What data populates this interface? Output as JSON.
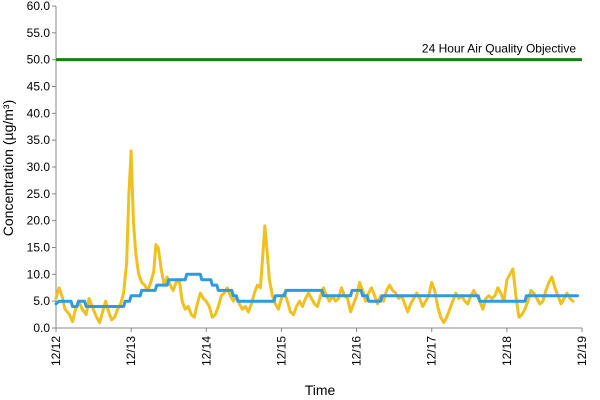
{
  "chart_data": {
    "type": "line",
    "title": "",
    "xlabel": "Time",
    "ylabel": "Concentration (µg/m³)",
    "ylim": [
      0,
      60
    ],
    "y_ticks": [
      "0.0",
      "5.0",
      "10.0",
      "15.0",
      "20.0",
      "25.0",
      "30.0",
      "35.0",
      "40.0",
      "45.0",
      "50.0",
      "55.0",
      "60.0"
    ],
    "x_tick_labels": [
      "12/12",
      "12/13",
      "12/14",
      "12/15",
      "12/16",
      "12/17",
      "12/18",
      "12/19"
    ],
    "x_range_days": [
      0,
      7
    ],
    "grid": false,
    "legend": "none",
    "objective": {
      "label": "24 Hour Air Quality Objective",
      "value": 50,
      "color": "#1e7a1e"
    },
    "series": [
      {
        "color": "#f0c020",
        "points": [
          [
            0.0,
            5.5
          ],
          [
            0.04,
            7.5
          ],
          [
            0.08,
            6.0
          ],
          [
            0.12,
            3.5
          ],
          [
            0.18,
            2.5
          ],
          [
            0.22,
            1.2
          ],
          [
            0.26,
            3.5
          ],
          [
            0.3,
            5.0
          ],
          [
            0.35,
            3.5
          ],
          [
            0.4,
            2.5
          ],
          [
            0.44,
            5.5
          ],
          [
            0.48,
            4.0
          ],
          [
            0.54,
            2.0
          ],
          [
            0.58,
            1.0
          ],
          [
            0.62,
            3.0
          ],
          [
            0.66,
            5.0
          ],
          [
            0.7,
            3.0
          ],
          [
            0.74,
            1.5
          ],
          [
            0.78,
            2.0
          ],
          [
            0.82,
            3.5
          ],
          [
            0.86,
            4.5
          ],
          [
            0.9,
            6.5
          ],
          [
            0.94,
            12.0
          ],
          [
            0.97,
            25.0
          ],
          [
            1.0,
            33.0
          ],
          [
            1.03,
            20.0
          ],
          [
            1.06,
            14.0
          ],
          [
            1.1,
            10.0
          ],
          [
            1.14,
            8.5
          ],
          [
            1.18,
            8.0
          ],
          [
            1.22,
            7.0
          ],
          [
            1.26,
            8.5
          ],
          [
            1.3,
            10.5
          ],
          [
            1.33,
            15.5
          ],
          [
            1.36,
            15.0
          ],
          [
            1.4,
            11.0
          ],
          [
            1.44,
            8.0
          ],
          [
            1.48,
            9.5
          ],
          [
            1.52,
            8.0
          ],
          [
            1.56,
            7.0
          ],
          [
            1.6,
            8.5
          ],
          [
            1.64,
            9.0
          ],
          [
            1.68,
            5.0
          ],
          [
            1.72,
            3.5
          ],
          [
            1.76,
            4.0
          ],
          [
            1.8,
            2.5
          ],
          [
            1.84,
            2.0
          ],
          [
            1.88,
            4.5
          ],
          [
            1.92,
            6.5
          ],
          [
            1.96,
            5.5
          ],
          [
            2.0,
            5.0
          ],
          [
            2.04,
            4.0
          ],
          [
            2.08,
            2.0
          ],
          [
            2.12,
            2.5
          ],
          [
            2.16,
            4.0
          ],
          [
            2.2,
            6.0
          ],
          [
            2.24,
            6.5
          ],
          [
            2.28,
            7.5
          ],
          [
            2.32,
            6.0
          ],
          [
            2.36,
            5.0
          ],
          [
            2.4,
            6.0
          ],
          [
            2.44,
            4.5
          ],
          [
            2.48,
            3.5
          ],
          [
            2.52,
            4.0
          ],
          [
            2.56,
            3.0
          ],
          [
            2.6,
            4.5
          ],
          [
            2.64,
            6.5
          ],
          [
            2.68,
            8.0
          ],
          [
            2.72,
            7.5
          ],
          [
            2.75,
            13.0
          ],
          [
            2.78,
            19.0
          ],
          [
            2.81,
            14.0
          ],
          [
            2.84,
            9.0
          ],
          [
            2.88,
            6.0
          ],
          [
            2.92,
            4.5
          ],
          [
            2.96,
            3.5
          ],
          [
            3.0,
            5.5
          ],
          [
            3.04,
            6.5
          ],
          [
            3.08,
            5.0
          ],
          [
            3.12,
            3.0
          ],
          [
            3.16,
            2.5
          ],
          [
            3.2,
            4.0
          ],
          [
            3.24,
            5.0
          ],
          [
            3.28,
            4.0
          ],
          [
            3.32,
            5.5
          ],
          [
            3.36,
            6.5
          ],
          [
            3.4,
            5.5
          ],
          [
            3.44,
            4.5
          ],
          [
            3.48,
            4.0
          ],
          [
            3.52,
            6.0
          ],
          [
            3.56,
            7.5
          ],
          [
            3.6,
            6.0
          ],
          [
            3.64,
            5.0
          ],
          [
            3.68,
            6.0
          ],
          [
            3.72,
            5.0
          ],
          [
            3.76,
            5.5
          ],
          [
            3.8,
            7.5
          ],
          [
            3.84,
            6.0
          ],
          [
            3.88,
            5.5
          ],
          [
            3.92,
            3.0
          ],
          [
            3.96,
            4.5
          ],
          [
            4.0,
            6.0
          ],
          [
            4.04,
            8.5
          ],
          [
            4.08,
            7.0
          ],
          [
            4.12,
            5.0
          ],
          [
            4.16,
            6.5
          ],
          [
            4.2,
            7.5
          ],
          [
            4.24,
            6.0
          ],
          [
            4.28,
            4.5
          ],
          [
            4.32,
            6.0
          ],
          [
            4.36,
            5.0
          ],
          [
            4.4,
            7.0
          ],
          [
            4.44,
            8.0
          ],
          [
            4.48,
            7.0
          ],
          [
            4.52,
            6.5
          ],
          [
            4.56,
            5.5
          ],
          [
            4.6,
            6.0
          ],
          [
            4.64,
            4.5
          ],
          [
            4.68,
            3.0
          ],
          [
            4.72,
            4.5
          ],
          [
            4.76,
            5.5
          ],
          [
            4.8,
            6.5
          ],
          [
            4.84,
            5.5
          ],
          [
            4.88,
            4.0
          ],
          [
            4.92,
            5.0
          ],
          [
            4.96,
            6.0
          ],
          [
            5.0,
            8.5
          ],
          [
            5.04,
            7.0
          ],
          [
            5.08,
            4.0
          ],
          [
            5.12,
            2.0
          ],
          [
            5.16,
            1.0
          ],
          [
            5.2,
            2.0
          ],
          [
            5.24,
            3.5
          ],
          [
            5.28,
            5.0
          ],
          [
            5.32,
            6.5
          ],
          [
            5.36,
            5.5
          ],
          [
            5.4,
            6.0
          ],
          [
            5.44,
            5.0
          ],
          [
            5.48,
            4.5
          ],
          [
            5.52,
            6.0
          ],
          [
            5.56,
            7.0
          ],
          [
            5.6,
            6.0
          ],
          [
            5.64,
            5.0
          ],
          [
            5.68,
            3.5
          ],
          [
            5.72,
            5.5
          ],
          [
            5.76,
            6.0
          ],
          [
            5.8,
            5.5
          ],
          [
            5.84,
            6.0
          ],
          [
            5.88,
            7.5
          ],
          [
            5.92,
            6.5
          ],
          [
            5.96,
            5.0
          ],
          [
            6.0,
            9.0
          ],
          [
            6.04,
            10.0
          ],
          [
            6.08,
            11.0
          ],
          [
            6.12,
            6.0
          ],
          [
            6.16,
            2.0
          ],
          [
            6.2,
            2.5
          ],
          [
            6.24,
            3.5
          ],
          [
            6.28,
            5.0
          ],
          [
            6.32,
            7.0
          ],
          [
            6.36,
            6.5
          ],
          [
            6.4,
            5.5
          ],
          [
            6.44,
            4.5
          ],
          [
            6.48,
            5.0
          ],
          [
            6.52,
            7.0
          ],
          [
            6.56,
            8.5
          ],
          [
            6.6,
            9.5
          ],
          [
            6.64,
            7.5
          ],
          [
            6.68,
            6.0
          ],
          [
            6.72,
            4.5
          ],
          [
            6.76,
            5.5
          ],
          [
            6.8,
            6.5
          ],
          [
            6.84,
            5.5
          ],
          [
            6.88,
            5.0
          ]
        ]
      },
      {
        "color": "#2e9ae0",
        "points": [
          [
            0.0,
            4.5
          ],
          [
            0.04,
            5.0
          ],
          [
            0.2,
            5.0
          ],
          [
            0.22,
            4.0
          ],
          [
            0.28,
            4.0
          ],
          [
            0.3,
            5.0
          ],
          [
            0.38,
            5.0
          ],
          [
            0.4,
            4.0
          ],
          [
            0.9,
            4.0
          ],
          [
            0.92,
            5.0
          ],
          [
            0.98,
            5.0
          ],
          [
            1.0,
            6.0
          ],
          [
            1.12,
            6.0
          ],
          [
            1.14,
            7.0
          ],
          [
            1.32,
            7.0
          ],
          [
            1.34,
            8.0
          ],
          [
            1.48,
            8.0
          ],
          [
            1.5,
            9.0
          ],
          [
            1.72,
            9.0
          ],
          [
            1.74,
            10.0
          ],
          [
            1.92,
            10.0
          ],
          [
            1.94,
            9.0
          ],
          [
            2.06,
            9.0
          ],
          [
            2.08,
            8.0
          ],
          [
            2.14,
            8.0
          ],
          [
            2.16,
            7.0
          ],
          [
            2.34,
            7.0
          ],
          [
            2.36,
            6.0
          ],
          [
            2.4,
            6.0
          ],
          [
            2.42,
            5.0
          ],
          [
            2.9,
            5.0
          ],
          [
            2.92,
            6.0
          ],
          [
            3.04,
            6.0
          ],
          [
            3.06,
            7.0
          ],
          [
            3.54,
            7.0
          ],
          [
            3.56,
            6.0
          ],
          [
            3.92,
            6.0
          ],
          [
            3.94,
            7.0
          ],
          [
            4.06,
            7.0
          ],
          [
            4.08,
            6.0
          ],
          [
            4.14,
            6.0
          ],
          [
            4.16,
            5.0
          ],
          [
            4.32,
            5.0
          ],
          [
            4.34,
            6.0
          ],
          [
            5.62,
            6.0
          ],
          [
            5.64,
            5.0
          ],
          [
            6.24,
            5.0
          ],
          [
            6.26,
            6.0
          ],
          [
            6.94,
            6.0
          ]
        ]
      }
    ]
  }
}
